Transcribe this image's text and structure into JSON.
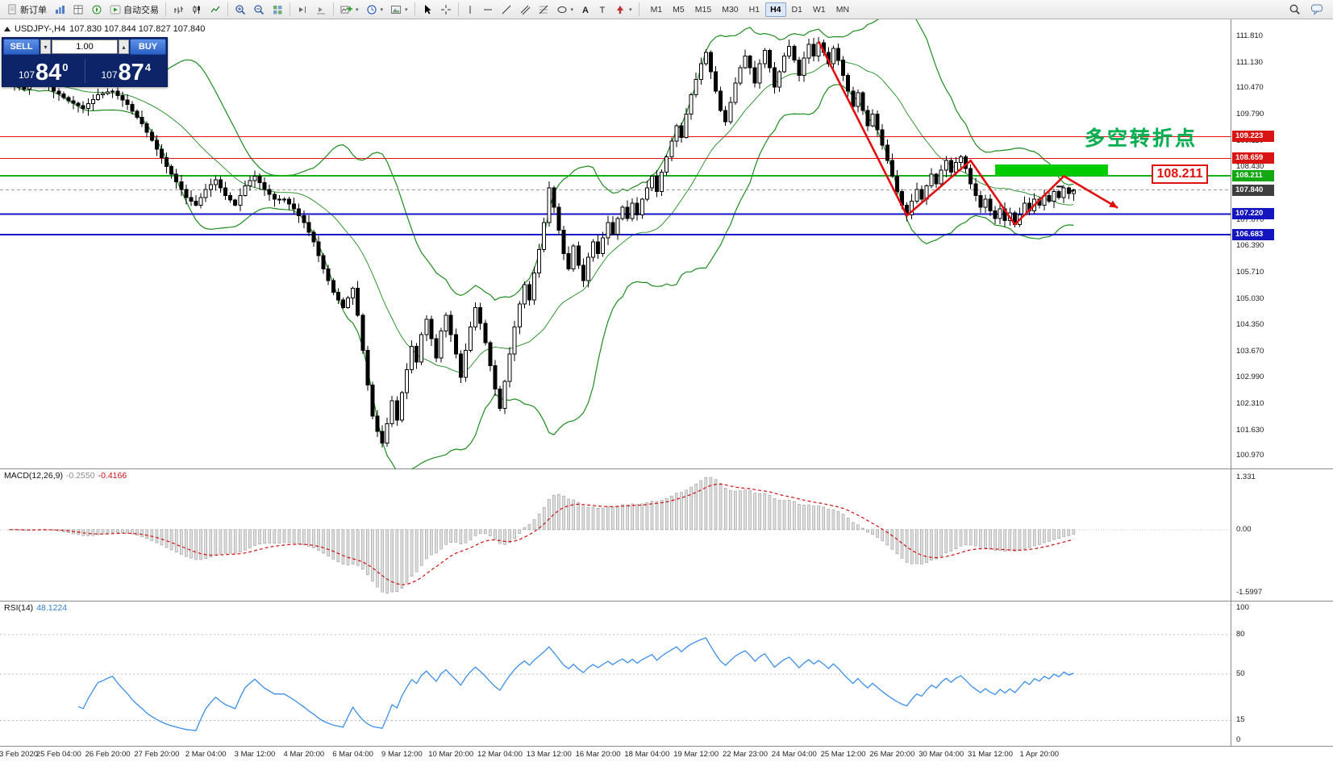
{
  "colors": {
    "bands": "#1e8c1e",
    "trend_line": "#e01010",
    "highlight_rect": "#00cc00",
    "turn_text_color": "#00b050",
    "callout_color": "#e01010",
    "rsi_line": "#3b8fe8",
    "macd_signal": "#d01010",
    "buy_sell_panel": "#0d2468"
  },
  "toolbar": {
    "new_order_label": "新订单",
    "auto_trading_label": "自动交易",
    "timeframes": [
      "M1",
      "M5",
      "M15",
      "M30",
      "H1",
      "H4",
      "D1",
      "W1",
      "MN"
    ],
    "active_timeframe": "H4"
  },
  "symbol_bar": {
    "symbol": "USDJPY-,H4",
    "ohlc": "107.830 107.844 107.827 107.840"
  },
  "trade_panel": {
    "sell_label": "SELL",
    "buy_label": "BUY",
    "volume": "1.00",
    "sell_small": "107",
    "sell_big": "84",
    "sell_sup": "0",
    "buy_small": "107",
    "buy_big": "87",
    "buy_sup": "4"
  },
  "price_scale": {
    "labels": [
      "111.810",
      "111.130",
      "110.470",
      "109.790",
      "109.110",
      "108.430",
      "107.750",
      "107.070",
      "106.390",
      "105.710",
      "105.030",
      "104.350",
      "103.670",
      "102.990",
      "102.310",
      "101.630",
      "100.970"
    ]
  },
  "levels": [
    {
      "price": 109.223,
      "label": "109.223",
      "color": "#e01010",
      "box": "#d81414",
      "width": 1
    },
    {
      "price": 108.659,
      "label": "108.659",
      "color": "#e01010",
      "box": "#d81414",
      "width": 1
    },
    {
      "price": 108.211,
      "label": "108.211",
      "color": "#18b018",
      "box": "#12a812",
      "width": 2
    },
    {
      "price": 107.22,
      "label": "107.220",
      "color": "#1616c8",
      "box": "#1414c0",
      "width": 2
    },
    {
      "price": 106.683,
      "label": "106.683",
      "color": "#1616c8",
      "box": "#1414c0",
      "width": 2
    }
  ],
  "current_price": {
    "price": 107.84,
    "label": "107.840",
    "box": "#3f3f3f",
    "line_color": "#9a9a9a"
  },
  "annotations": {
    "turn_text": "多空转折点",
    "callout_text": "108.211",
    "trend_line": {
      "color": "#e01010",
      "points_bar_price": [
        [
          165,
          111.68
        ],
        [
          183,
          107.18
        ],
        [
          196,
          108.6
        ],
        [
          205,
          106.95
        ],
        [
          215,
          108.2
        ],
        [
          226,
          107.38
        ]
      ]
    },
    "highlight_rect": {
      "bar_start": 201,
      "bar_end": 224,
      "price_top": 108.5,
      "price_bottom": 108.211,
      "color": "#00cc00"
    }
  },
  "macd": {
    "title": "MACD(12,26,9)",
    "value1": "-0.2550",
    "value2": "-0.4166",
    "scale_top": "1.331",
    "scale_zero": "0.00",
    "scale_bottom": "-1.5997"
  },
  "rsi": {
    "title": "RSI(14)",
    "value": "48.1224",
    "scale_labels": [
      "100",
      "80",
      "50",
      "15",
      "0"
    ],
    "level_lines": [
      80,
      50,
      15
    ]
  },
  "time_axis": [
    "3 Feb 2020",
    "25 Feb 04:00",
    "26 Feb 20:00",
    "27 Feb 20:00",
    "2 Mar 04:00",
    "3 Mar 12:00",
    "4 Mar 20:00",
    "6 Mar 04:00",
    "9 Mar 12:00",
    "10 Mar 20:00",
    "12 Mar 04:00",
    "13 Mar 12:00",
    "16 Mar 20:00",
    "18 Mar 04:00",
    "19 Mar 12:00",
    "22 Mar 23:00",
    "24 Mar 04:00",
    "25 Mar 12:00",
    "26 Mar 20:00",
    "30 Mar 04:00",
    "31 Mar 12:00",
    "1 Apr 20:00"
  ],
  "chart_data": {
    "type": "candlestick",
    "symbol": "USDJPY",
    "timeframe": "H4",
    "ohlc_display": {
      "open": "107.830",
      "high": "107.844",
      "low": "107.827",
      "close": "107.840"
    },
    "ylim": [
      100.8,
      112.25
    ],
    "levels": [
      109.223,
      108.659,
      108.211,
      107.22,
      106.683
    ],
    "current_price": 107.84,
    "indicators": {
      "bollinger": {
        "period": 20,
        "deviation": 2
      },
      "macd": {
        "fast": 12,
        "slow": 26,
        "signal": 9,
        "values": [
          -0.255,
          -0.4166
        ]
      },
      "rsi": {
        "period": 14,
        "value": 48.1224
      }
    },
    "closes": [
      110.6,
      110.55,
      110.5,
      110.45,
      110.55,
      110.65,
      110.75,
      110.63,
      110.52,
      110.4,
      110.32,
      110.23,
      110.15,
      110.08,
      110.02,
      109.95,
      110.07,
      110.18,
      110.3,
      110.33,
      110.37,
      110.4,
      110.28,
      110.17,
      110.05,
      109.88,
      109.72,
      109.55,
      109.33,
      109.12,
      108.9,
      108.68,
      108.45,
      108.25,
      108.05,
      107.85,
      107.65,
      107.55,
      107.45,
      107.65,
      107.85,
      107.98,
      108.1,
      107.9,
      107.7,
      107.58,
      107.45,
      107.7,
      107.95,
      108.08,
      108.2,
      108.03,
      107.85,
      107.73,
      107.6,
      107.6,
      107.6,
      107.48,
      107.35,
      107.18,
      107.0,
      106.75,
      106.5,
      106.15,
      105.8,
      105.5,
      105.2,
      105.0,
      104.8,
      105.05,
      105.3,
      104.6,
      103.7,
      102.8,
      102.0,
      101.6,
      101.3,
      101.8,
      102.4,
      101.9,
      102.6,
      103.2,
      103.8,
      103.4,
      104.1,
      104.5,
      104.0,
      103.5,
      104.2,
      104.6,
      104.1,
      103.6,
      103.0,
      103.7,
      104.3,
      104.8,
      104.4,
      103.9,
      103.3,
      102.7,
      102.2,
      102.9,
      103.6,
      104.3,
      104.9,
      105.4,
      105.0,
      105.7,
      106.3,
      107.0,
      107.9,
      107.4,
      106.8,
      106.2,
      105.8,
      106.4,
      105.9,
      105.5,
      106.1,
      106.5,
      106.2,
      106.6,
      107.0,
      106.7,
      107.1,
      107.4,
      107.1,
      107.5,
      107.2,
      107.6,
      107.9,
      108.2,
      107.8,
      108.3,
      108.7,
      109.1,
      109.5,
      109.2,
      109.8,
      110.3,
      110.7,
      111.1,
      111.4,
      110.9,
      110.4,
      109.9,
      109.6,
      110.1,
      110.6,
      111.0,
      111.3,
      111.0,
      110.6,
      111.1,
      111.45,
      111.0,
      110.5,
      110.9,
      111.3,
      111.55,
      111.2,
      110.8,
      111.25,
      111.6,
      111.3,
      111.65,
      111.4,
      111.1,
      111.5,
      111.2,
      110.8,
      110.4,
      110.0,
      110.35,
      109.9,
      109.5,
      109.8,
      109.4,
      109.0,
      108.6,
      108.2,
      107.8,
      107.45,
      107.2,
      107.55,
      107.85,
      107.6,
      107.95,
      108.25,
      108.0,
      108.35,
      108.6,
      108.3,
      108.55,
      108.7,
      108.4,
      108.0,
      107.7,
      107.4,
      107.6,
      107.3,
      107.1,
      107.35,
      107.05,
      107.25,
      106.95,
      107.2,
      107.5,
      107.3,
      107.6,
      107.45,
      107.7,
      107.55,
      107.8,
      107.65,
      107.9,
      107.75,
      107.84
    ]
  }
}
